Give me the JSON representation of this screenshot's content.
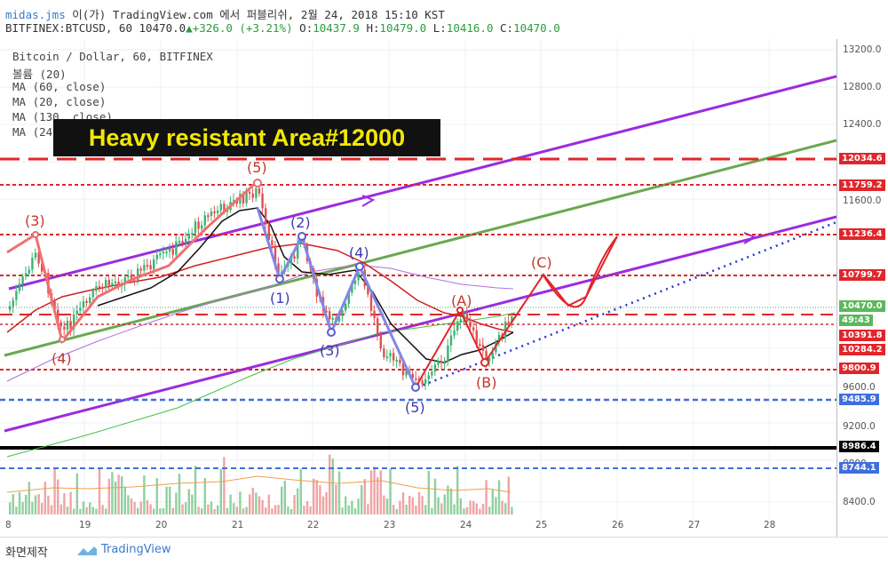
{
  "header": {
    "author": "midas.jms",
    "published": "이(가) TradingView.com 에서 퍼블리쉬, 2월 24, 2018 15:10 KST",
    "symbol": "BITFINEX:BTCUSD, 60",
    "last": "10470.0",
    "change": "+326.0 (+3.21%)",
    "open_label": "O:",
    "open": "10437.9",
    "high_label": "H:",
    "high": "10479.0",
    "low_label": "L:",
    "low": "10416.0",
    "close_label": "C:",
    "close": "10470.0"
  },
  "legend": [
    "Bitcoin / Dollar, 60, BITFINEX",
    "볼륨 (20)",
    "MA (60, close)",
    "MA (20, close)",
    "MA (130, close)",
    "MA (240, close)"
  ],
  "banner": "Heavy resistant Area#12000",
  "price_axis": {
    "ticks": [
      "13200.0",
      "12800.0",
      "12400.0",
      "11600.0",
      "9600.0",
      "9200.0",
      "8400.0"
    ],
    "tags": {
      "r1": "12034.6",
      "r2": "11759.2",
      "r3": "11236.4",
      "r4": "10799.7",
      "last": "10470.0",
      "timer": "49:43",
      "r5": "10391.8",
      "r6": "10284.2",
      "r7": "9800.9",
      "s1": "9485.9",
      "s2": "8986.4",
      "s3": "8744.1"
    },
    "volume_tick": "8800"
  },
  "time_axis": [
    "8",
    "19",
    "20",
    "21",
    "22",
    "23",
    "24",
    "25",
    "26",
    "27",
    "28"
  ],
  "waves": {
    "w3_top": "(3)",
    "w4_bot": "(4)",
    "w5_top": "(5)",
    "c1": "(1)",
    "c2": "(2)",
    "c3": "(3)",
    "c4": "(4)",
    "c5": "(5)",
    "a": "(A)",
    "b": "(B)",
    "c": "(C)"
  },
  "colors": {
    "resistance": "#e0262b",
    "support_blue": "#3f6fdc",
    "channel": "#9b2be0",
    "trend_green": "#6aa84f",
    "ma60": "#111111",
    "ma20": "#d02020",
    "ma130": "#b070e0",
    "ma240": "#44c044",
    "volume_up": "#8fd19e",
    "volume_down": "#f2a3a3",
    "up_candle": "#3cb371",
    "down_candle": "#e05050"
  },
  "footer": {
    "snapshot": "화면제작",
    "brand": "TradingView"
  }
}
